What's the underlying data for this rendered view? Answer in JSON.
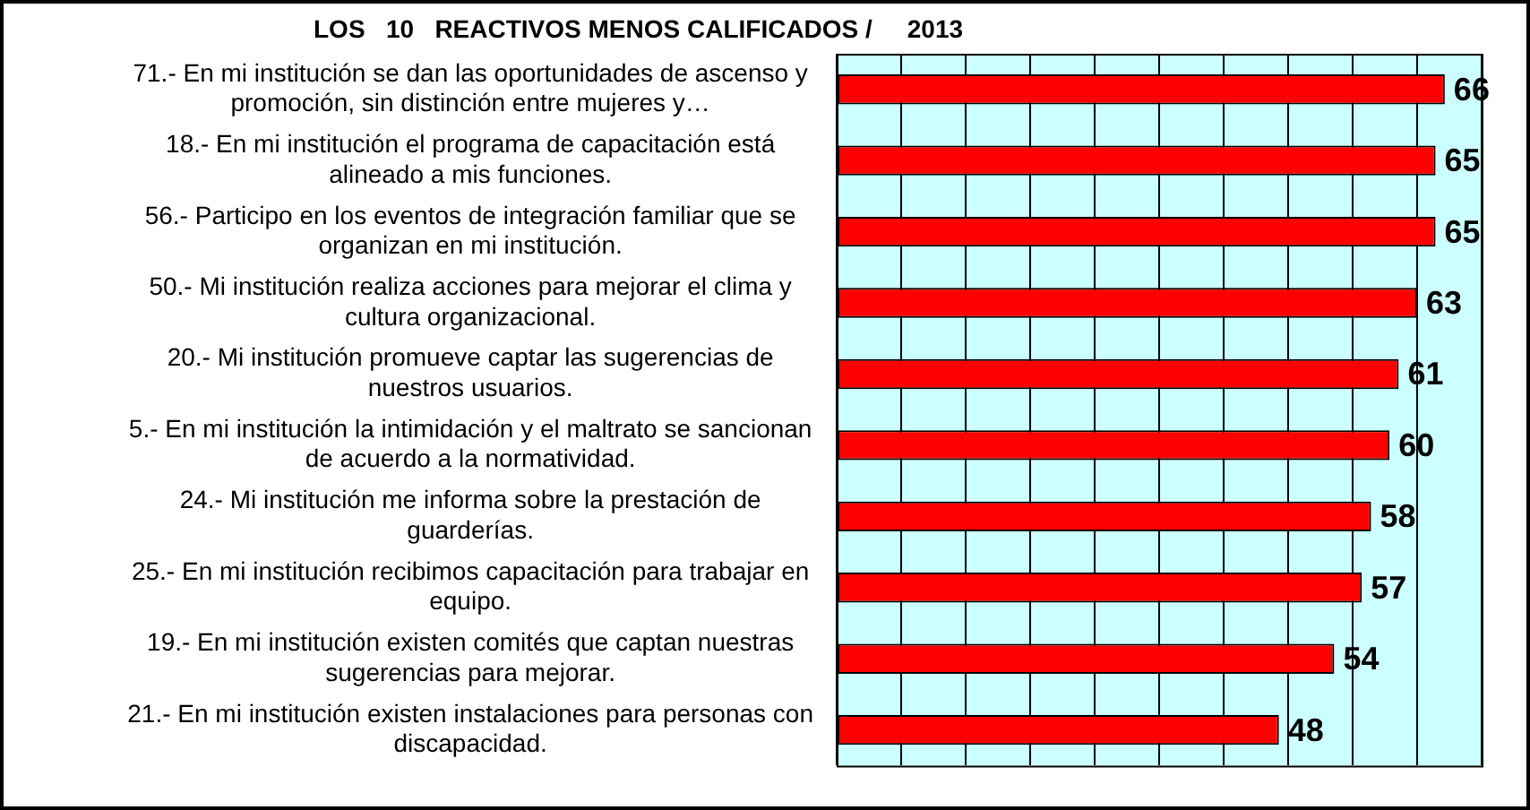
{
  "chart_data": {
    "type": "bar",
    "orientation": "horizontal",
    "title": "LOS   10   REACTIVOS MENOS CALIFICADOS /     2013",
    "categories": [
      "71.- En mi institución se dan las oportunidades de ascenso y promoción, sin distinción entre mujeres y…",
      "18.- En mi institución el programa de capacitación está alineado a mis funciones.",
      "56.- Participo en los eventos de integración familiar que se organizan en mi institución.",
      "50.- Mi institución realiza acciones para mejorar el clima y cultura organizacional.",
      "20.- Mi institución promueve captar las sugerencias de nuestros usuarios.",
      "5.- En mi institución la intimidación y el maltrato se sancionan de acuerdo a la normatividad.",
      "24.- Mi institución me informa sobre la prestación de guarderías.",
      "25.- En mi institución recibimos capacitación para trabajar en equipo.",
      "19.- En mi institución existen comités que captan nuestras sugerencias para mejorar.",
      "21.- En mi institución existen instalaciones para personas con discapacidad."
    ],
    "values": [
      66,
      65,
      65,
      63,
      61,
      60,
      58,
      57,
      54,
      48
    ],
    "color": "#ff0000",
    "data_labels": true,
    "grid": "x",
    "tick_labels": "y",
    "xlim": [
      0,
      70
    ],
    "xticks": [
      {
        "value": 0,
        "label": null
      },
      {
        "value": 7,
        "label": null
      },
      {
        "value": 14,
        "label": null
      },
      {
        "value": 21,
        "label": null
      },
      {
        "value": 28,
        "label": null
      },
      {
        "value": 35,
        "label": null
      },
      {
        "value": 42,
        "label": null
      },
      {
        "value": 49,
        "label": null
      },
      {
        "value": 56,
        "label": null
      },
      {
        "value": 63,
        "label": null
      },
      {
        "value": 70,
        "label": null
      }
    ]
  }
}
